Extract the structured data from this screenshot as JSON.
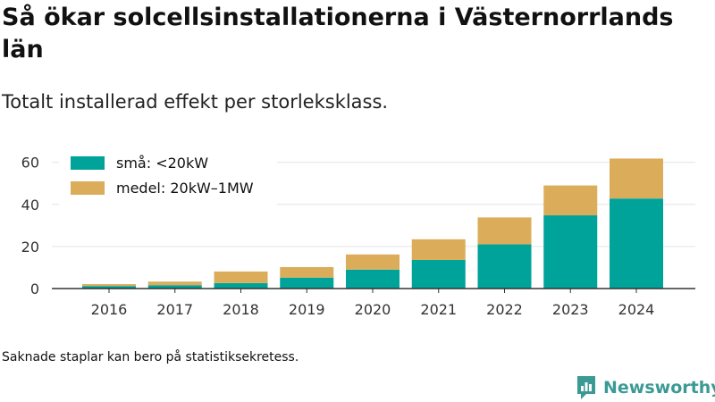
{
  "header": {
    "title": "Så ökar solcellsinstallationerna i Västernorrlands län",
    "subtitle": "Totalt installerad effekt per storleksklass."
  },
  "footer": {
    "note": "Saknade staplar kan bero på statistiksekretess.",
    "brand": "Newsworthy"
  },
  "colors": {
    "small": "#00a39a",
    "medium": "#dbad5a",
    "grid": "#e3e3e3",
    "axis": "#333333"
  },
  "chart_data": {
    "type": "bar",
    "stacked": true,
    "categories": [
      "2016",
      "2017",
      "2018",
      "2019",
      "2020",
      "2021",
      "2022",
      "2023",
      "2024"
    ],
    "series": [
      {
        "name": "små: <20kW",
        "values": [
          1.2,
          1.6,
          2.6,
          5.2,
          9.0,
          13.6,
          21.0,
          34.8,
          42.8
        ]
      },
      {
        "name": "medel: 20kW–1MW",
        "values": [
          0.9,
          1.7,
          5.5,
          5.0,
          7.2,
          9.8,
          12.8,
          14.2,
          19.0
        ]
      }
    ],
    "yticks": [
      0,
      20,
      40,
      60
    ],
    "ylim": [
      0,
      64
    ],
    "grid": true,
    "legend": "top-left"
  }
}
